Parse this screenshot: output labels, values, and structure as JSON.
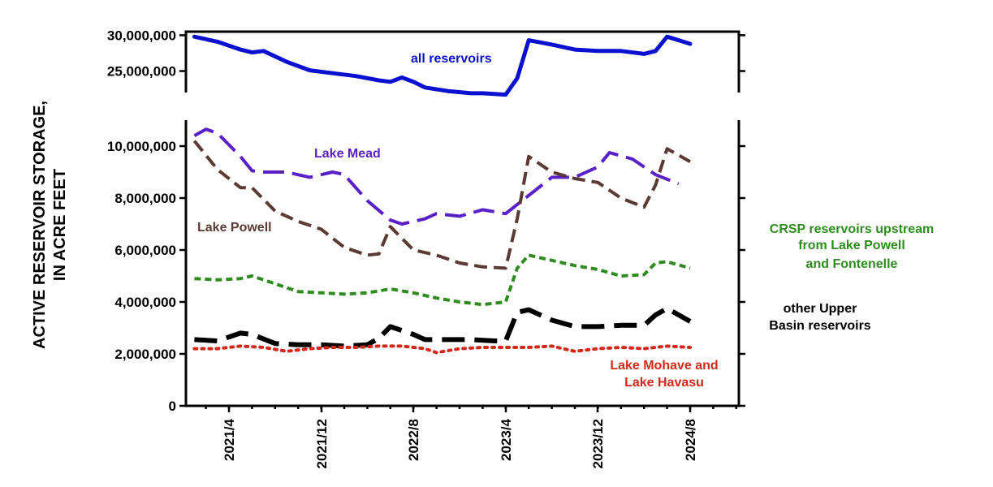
{
  "chart_data": {
    "type": "line",
    "ylabel": [
      "ACTIVE RESERVOIR STORAGE,",
      "IN ACRE FEET"
    ],
    "x_ticks": [
      "2021/4",
      "2021/12",
      "2022/8",
      "2023/4",
      "2023/12",
      "2024/8"
    ],
    "top_panel": {
      "ylim": [
        22000000,
        30500000
      ],
      "y_ticks": [
        "25,000,000",
        "30,000,000"
      ],
      "series": [
        {
          "name": "all reservoirs",
          "color": "#0a10d0",
          "style": "solid",
          "points": [
            [
              "2021-01",
              29800000
            ],
            [
              "2021-03",
              29100000
            ],
            [
              "2021-05",
              28000000
            ],
            [
              "2021-06",
              27600000
            ],
            [
              "2021-07",
              27800000
            ],
            [
              "2021-09",
              26300000
            ],
            [
              "2021-11",
              25100000
            ],
            [
              "2022-01",
              24700000
            ],
            [
              "2022-03",
              24300000
            ],
            [
              "2022-05",
              23700000
            ],
            [
              "2022-06",
              23500000
            ],
            [
              "2022-07",
              24100000
            ],
            [
              "2022-08",
              23500000
            ],
            [
              "2022-09",
              22700000
            ],
            [
              "2022-11",
              22200000
            ],
            [
              "2023-01",
              21900000
            ],
            [
              "2023-02",
              21900000
            ],
            [
              "2023-04",
              21700000
            ],
            [
              "2023-05",
              24000000
            ],
            [
              "2023-06",
              29300000
            ],
            [
              "2023-08",
              28700000
            ],
            [
              "2023-10",
              28000000
            ],
            [
              "2023-12",
              27800000
            ],
            [
              "2024-02",
              27800000
            ],
            [
              "2024-04",
              27400000
            ],
            [
              "2024-05",
              27800000
            ],
            [
              "2024-06",
              29800000
            ],
            [
              "2024-08",
              28800000
            ]
          ]
        }
      ]
    },
    "bottom_panel": {
      "ylim": [
        0,
        11000000
      ],
      "y_ticks": [
        "0",
        "2,000,000",
        "4,000,000",
        "6,000,000",
        "8,000,000",
        "10,000,000"
      ],
      "series": [
        {
          "name": "Lake Mead",
          "color": "#5a20c8",
          "style": "longdash",
          "points": [
            [
              "2021-01",
              10400000
            ],
            [
              "2021-02",
              10650000
            ],
            [
              "2021-03",
              10500000
            ],
            [
              "2021-05",
              9600000
            ],
            [
              "2021-06",
              9050000
            ],
            [
              "2021-07",
              9000000
            ],
            [
              "2021-09",
              9000000
            ],
            [
              "2021-11",
              8800000
            ],
            [
              "2022-01",
              9000000
            ],
            [
              "2022-02",
              8900000
            ],
            [
              "2022-04",
              7900000
            ],
            [
              "2022-06",
              7150000
            ],
            [
              "2022-07",
              7000000
            ],
            [
              "2022-09",
              7200000
            ],
            [
              "2022-10",
              7400000
            ],
            [
              "2022-12",
              7300000
            ],
            [
              "2023-02",
              7550000
            ],
            [
              "2023-04",
              7400000
            ],
            [
              "2023-06",
              8100000
            ],
            [
              "2023-08",
              8800000
            ],
            [
              "2023-10",
              8800000
            ],
            [
              "2023-12",
              9200000
            ],
            [
              "2024-01",
              9750000
            ],
            [
              "2024-03",
              9500000
            ],
            [
              "2024-05",
              8900000
            ],
            [
              "2024-07",
              8550000
            ]
          ]
        },
        {
          "name": "Lake Powell",
          "color": "#5a3a32",
          "style": "dash",
          "points": [
            [
              "2021-01",
              10200000
            ],
            [
              "2021-03",
              9100000
            ],
            [
              "2021-05",
              8400000
            ],
            [
              "2021-06",
              8400000
            ],
            [
              "2021-08",
              7500000
            ],
            [
              "2021-10",
              7100000
            ],
            [
              "2021-12",
              6800000
            ],
            [
              "2022-02",
              6100000
            ],
            [
              "2022-04",
              5800000
            ],
            [
              "2022-05",
              5850000
            ],
            [
              "2022-06",
              6900000
            ],
            [
              "2022-08",
              6000000
            ],
            [
              "2022-10",
              5800000
            ],
            [
              "2022-12",
              5500000
            ],
            [
              "2023-02",
              5350000
            ],
            [
              "2023-04",
              5300000
            ],
            [
              "2023-05",
              7200000
            ],
            [
              "2023-06",
              9600000
            ],
            [
              "2023-08",
              9000000
            ],
            [
              "2023-10",
              8750000
            ],
            [
              "2023-12",
              8600000
            ],
            [
              "2024-02",
              8000000
            ],
            [
              "2024-04",
              7650000
            ],
            [
              "2024-05",
              8500000
            ],
            [
              "2024-06",
              9900000
            ],
            [
              "2024-08",
              9400000
            ]
          ]
        },
        {
          "name": "CRSP reservoirs upstream from Lake Powell and Fontenelle",
          "color": "#2e8b1e",
          "style": "shortdash",
          "points": [
            [
              "2021-01",
              4900000
            ],
            [
              "2021-03",
              4850000
            ],
            [
              "2021-05",
              4900000
            ],
            [
              "2021-06",
              5000000
            ],
            [
              "2021-08",
              4700000
            ],
            [
              "2021-10",
              4400000
            ],
            [
              "2021-12",
              4350000
            ],
            [
              "2022-02",
              4300000
            ],
            [
              "2022-04",
              4350000
            ],
            [
              "2022-06",
              4500000
            ],
            [
              "2022-08",
              4350000
            ],
            [
              "2022-10",
              4150000
            ],
            [
              "2022-12",
              4000000
            ],
            [
              "2023-02",
              3900000
            ],
            [
              "2023-04",
              4000000
            ],
            [
              "2023-05",
              5300000
            ],
            [
              "2023-06",
              5800000
            ],
            [
              "2023-08",
              5600000
            ],
            [
              "2023-10",
              5400000
            ],
            [
              "2023-12",
              5250000
            ],
            [
              "2024-02",
              5000000
            ],
            [
              "2024-04",
              5050000
            ],
            [
              "2024-05",
              5500000
            ],
            [
              "2024-06",
              5550000
            ],
            [
              "2024-08",
              5300000
            ]
          ]
        },
        {
          "name": "other Upper Basin reservoirs",
          "color": "#000000",
          "style": "heavydash",
          "points": [
            [
              "2021-01",
              2550000
            ],
            [
              "2021-03",
              2500000
            ],
            [
              "2021-05",
              2800000
            ],
            [
              "2021-06",
              2750000
            ],
            [
              "2021-08",
              2400000
            ],
            [
              "2021-10",
              2350000
            ],
            [
              "2021-12",
              2350000
            ],
            [
              "2022-02",
              2300000
            ],
            [
              "2022-04",
              2350000
            ],
            [
              "2022-05",
              2600000
            ],
            [
              "2022-06",
              3050000
            ],
            [
              "2022-08",
              2750000
            ],
            [
              "2022-09",
              2550000
            ],
            [
              "2022-11",
              2550000
            ],
            [
              "2023-01",
              2550000
            ],
            [
              "2023-03",
              2500000
            ],
            [
              "2023-04",
              2500000
            ],
            [
              "2023-05",
              3600000
            ],
            [
              "2023-06",
              3700000
            ],
            [
              "2023-08",
              3300000
            ],
            [
              "2023-10",
              3050000
            ],
            [
              "2023-12",
              3050000
            ],
            [
              "2024-02",
              3100000
            ],
            [
              "2024-04",
              3100000
            ],
            [
              "2024-05",
              3500000
            ],
            [
              "2024-06",
              3750000
            ],
            [
              "2024-08",
              3250000
            ]
          ]
        },
        {
          "name": "Lake Mohave and Lake Havasu",
          "color": "#d22a1a",
          "style": "dots",
          "points": [
            [
              "2021-01",
              2200000
            ],
            [
              "2021-03",
              2200000
            ],
            [
              "2021-05",
              2300000
            ],
            [
              "2021-07",
              2250000
            ],
            [
              "2021-09",
              2100000
            ],
            [
              "2021-11",
              2200000
            ],
            [
              "2022-01",
              2250000
            ],
            [
              "2022-03",
              2250000
            ],
            [
              "2022-05",
              2300000
            ],
            [
              "2022-07",
              2300000
            ],
            [
              "2022-09",
              2200000
            ],
            [
              "2022-10",
              2050000
            ],
            [
              "2022-12",
              2200000
            ],
            [
              "2023-02",
              2250000
            ],
            [
              "2023-04",
              2250000
            ],
            [
              "2023-06",
              2250000
            ],
            [
              "2023-08",
              2300000
            ],
            [
              "2023-10",
              2100000
            ],
            [
              "2023-12",
              2200000
            ],
            [
              "2024-02",
              2250000
            ],
            [
              "2024-04",
              2200000
            ],
            [
              "2024-06",
              2300000
            ],
            [
              "2024-08",
              2250000
            ]
          ]
        }
      ]
    },
    "annotations": {
      "all_reservoirs": "all reservoirs",
      "lake_mead": "Lake Mead",
      "lake_powell": "Lake Powell",
      "crsp": [
        "CRSP reservoirs upstream",
        "from Lake Powell",
        "and Fontenelle"
      ],
      "other_upper": [
        "other Upper",
        "Basin reservoirs"
      ],
      "mohave": [
        "Lake Mohave and",
        "Lake Havasu"
      ]
    }
  }
}
